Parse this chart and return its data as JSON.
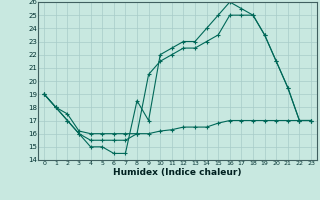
{
  "xlabel": "Humidex (Indice chaleur)",
  "bg_color": "#c8e8e0",
  "grid_color": "#a8ccc8",
  "line_color": "#006858",
  "xlim": [
    -0.5,
    23.5
  ],
  "ylim": [
    14,
    26
  ],
  "xticks": [
    0,
    1,
    2,
    3,
    4,
    5,
    6,
    7,
    8,
    9,
    10,
    11,
    12,
    13,
    14,
    15,
    16,
    17,
    18,
    19,
    20,
    21,
    22,
    23
  ],
  "yticks": [
    14,
    15,
    16,
    17,
    18,
    19,
    20,
    21,
    22,
    23,
    24,
    25,
    26
  ],
  "line1_x": [
    0,
    1,
    2,
    3,
    4,
    5,
    6,
    7,
    8,
    9,
    10,
    11,
    12,
    13,
    14,
    15,
    16,
    17,
    18,
    19,
    20,
    21,
    22,
    23
  ],
  "line1_y": [
    19,
    18,
    17,
    16,
    15,
    15,
    14.5,
    14.5,
    18.5,
    17,
    22,
    22.5,
    23,
    23,
    24,
    25,
    26,
    25.5,
    25,
    23.5,
    21.5,
    19.5,
    17,
    17
  ],
  "line2_x": [
    0,
    1,
    2,
    3,
    4,
    5,
    6,
    7,
    8,
    9,
    10,
    11,
    12,
    13,
    14,
    15,
    16,
    17,
    18,
    19,
    20,
    21,
    22,
    23
  ],
  "line2_y": [
    19,
    18,
    17,
    16,
    15.5,
    15.5,
    15.5,
    15.5,
    16,
    20.5,
    21.5,
    22,
    22.5,
    22.5,
    23,
    23.5,
    25,
    25,
    25,
    23.5,
    21.5,
    19.5,
    17,
    17
  ],
  "line3_x": [
    0,
    1,
    2,
    3,
    4,
    5,
    6,
    7,
    8,
    9,
    10,
    11,
    12,
    13,
    14,
    15,
    16,
    17,
    18,
    19,
    20,
    21,
    22,
    23
  ],
  "line3_y": [
    19,
    18,
    17.5,
    16.2,
    16,
    16,
    16,
    16,
    16,
    16,
    16.2,
    16.3,
    16.5,
    16.5,
    16.5,
    16.8,
    17,
    17,
    17,
    17,
    17,
    17,
    17,
    17
  ]
}
